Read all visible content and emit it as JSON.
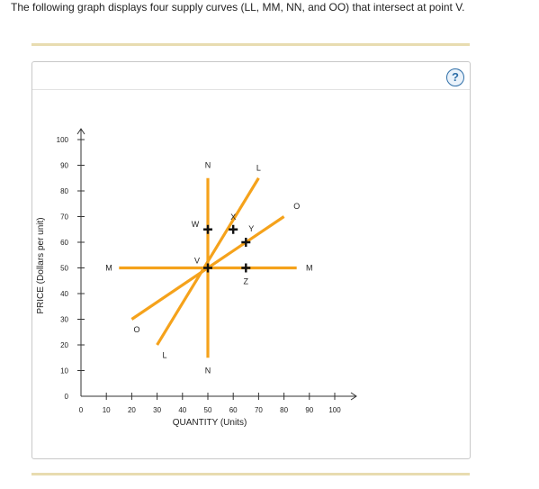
{
  "intro_text": "The following graph displays four supply curves (LL, MM, NN, and OO) that intersect at point V.",
  "help_button": "?",
  "chart_data": {
    "type": "line",
    "xlabel": "QUANTITY (Units)",
    "ylabel": "PRICE (Dollars per unit)",
    "xlim": [
      0,
      100
    ],
    "ylim": [
      0,
      100
    ],
    "x_ticks": [
      "0",
      "10",
      "20",
      "30",
      "40",
      "50",
      "60",
      "70",
      "80",
      "90",
      "100"
    ],
    "y_ticks": [
      "0",
      "10",
      "20",
      "30",
      "40",
      "50",
      "60",
      "70",
      "80",
      "90",
      "100"
    ],
    "grid": false,
    "series_color": "#f5a21b",
    "series": [
      {
        "name": "LL",
        "points": [
          [
            30,
            20
          ],
          [
            70,
            85
          ]
        ],
        "labels": [
          {
            "text": "L",
            "at": [
              33,
              16
            ]
          },
          {
            "text": "L",
            "at": [
              70,
              89
            ]
          }
        ]
      },
      {
        "name": "MM",
        "points": [
          [
            15,
            50
          ],
          [
            85,
            50
          ]
        ],
        "labels": [
          {
            "text": "M",
            "at": [
              11,
              50
            ]
          },
          {
            "text": "M",
            "at": [
              90,
              50
            ]
          }
        ]
      },
      {
        "name": "NN",
        "points": [
          [
            50,
            15
          ],
          [
            50,
            85
          ]
        ],
        "labels": [
          {
            "text": "N",
            "at": [
              50,
              10
            ]
          },
          {
            "text": "N",
            "at": [
              50,
              90
            ]
          }
        ]
      },
      {
        "name": "OO",
        "points": [
          [
            20,
            30
          ],
          [
            80,
            70
          ]
        ],
        "labels": [
          {
            "text": "O",
            "at": [
              22,
              26
            ]
          },
          {
            "text": "O",
            "at": [
              85,
              74
            ]
          }
        ]
      }
    ],
    "points": [
      {
        "name": "V",
        "x": 50,
        "y": 50
      },
      {
        "name": "W",
        "x": 50,
        "y": 65
      },
      {
        "name": "X",
        "x": 60,
        "y": 65
      },
      {
        "name": "Y",
        "x": 65,
        "y": 60
      },
      {
        "name": "Z",
        "x": 65,
        "y": 50
      }
    ]
  }
}
